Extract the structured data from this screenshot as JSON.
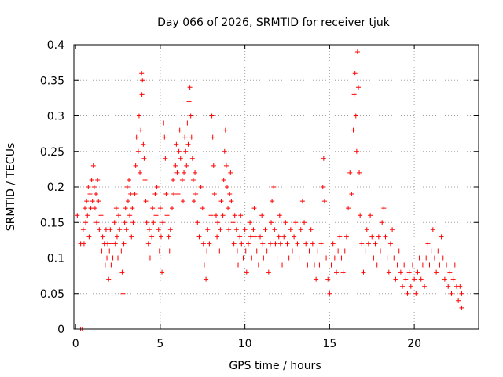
{
  "chart_data": {
    "type": "scatter",
    "title": "Day 066 of 2026, SRMTID for receiver tjuk",
    "xlabel": "GPS time / hours",
    "ylabel": "SRMTID / TECUs",
    "xlim": [
      -0.1,
      23.8
    ],
    "ylim": [
      0,
      0.4
    ],
    "xticks": [
      0,
      5,
      10,
      15,
      20
    ],
    "xtick_labels": [
      "0",
      "5",
      "10",
      "15",
      "20"
    ],
    "yticks": [
      0,
      0.05,
      0.1,
      0.15,
      0.2,
      0.25,
      0.3,
      0.35,
      0.4
    ],
    "ytick_labels": [
      "0",
      "0.05",
      "0.1",
      "0.15",
      "0.2",
      "0.25",
      "0.3",
      "0.35",
      "0.4"
    ],
    "grid": true,
    "marker": "+",
    "color": "#ff0000",
    "series": [
      {
        "name": "SRMTID",
        "points": [
          [
            0.1,
            0.16
          ],
          [
            0.2,
            0.1
          ],
          [
            0.3,
            0.12
          ],
          [
            0.3,
            0.0
          ],
          [
            0.4,
            0.0
          ],
          [
            0.45,
            0.14
          ],
          [
            0.5,
            0.12
          ],
          [
            0.55,
            0.17
          ],
          [
            0.6,
            0.15
          ],
          [
            0.65,
            0.18
          ],
          [
            0.7,
            0.16
          ],
          [
            0.75,
            0.2
          ],
          [
            0.8,
            0.13
          ],
          [
            0.85,
            0.19
          ],
          [
            0.9,
            0.17
          ],
          [
            0.95,
            0.21
          ],
          [
            1.0,
            0.18
          ],
          [
            1.05,
            0.23
          ],
          [
            1.1,
            0.2
          ],
          [
            1.15,
            0.17
          ],
          [
            1.2,
            0.19
          ],
          [
            1.25,
            0.15
          ],
          [
            1.3,
            0.21
          ],
          [
            1.35,
            0.18
          ],
          [
            1.4,
            0.14
          ],
          [
            1.5,
            0.16
          ],
          [
            1.55,
            0.11
          ],
          [
            1.6,
            0.13
          ],
          [
            1.7,
            0.12
          ],
          [
            1.75,
            0.09
          ],
          [
            1.8,
            0.14
          ],
          [
            1.85,
            0.1
          ],
          [
            1.9,
            0.12
          ],
          [
            1.95,
            0.07
          ],
          [
            2.0,
            0.11
          ],
          [
            2.05,
            0.14
          ],
          [
            2.1,
            0.09
          ],
          [
            2.15,
            0.12
          ],
          [
            2.2,
            0.1
          ],
          [
            2.3,
            0.15
          ],
          [
            2.35,
            0.12
          ],
          [
            2.4,
            0.17
          ],
          [
            2.45,
            0.13
          ],
          [
            2.5,
            0.1
          ],
          [
            2.55,
            0.16
          ],
          [
            2.6,
            0.14
          ],
          [
            2.7,
            0.11
          ],
          [
            2.75,
            0.08
          ],
          [
            2.8,
            0.05
          ],
          [
            2.85,
            0.12
          ],
          [
            2.9,
            0.15
          ],
          [
            2.95,
            0.17
          ],
          [
            3.0,
            0.14
          ],
          [
            3.05,
            0.2
          ],
          [
            3.1,
            0.18
          ],
          [
            3.15,
            0.21
          ],
          [
            3.2,
            0.16
          ],
          [
            3.25,
            0.19
          ],
          [
            3.3,
            0.13
          ],
          [
            3.35,
            0.17
          ],
          [
            3.4,
            0.15
          ],
          [
            3.5,
            0.19
          ],
          [
            3.55,
            0.23
          ],
          [
            3.6,
            0.27
          ],
          [
            3.7,
            0.25
          ],
          [
            3.75,
            0.3
          ],
          [
            3.8,
            0.22
          ],
          [
            3.85,
            0.28
          ],
          [
            3.9,
            0.36
          ],
          [
            3.92,
            0.33
          ],
          [
            3.95,
            0.35
          ],
          [
            4.0,
            0.26
          ],
          [
            4.05,
            0.24
          ],
          [
            4.1,
            0.21
          ],
          [
            4.15,
            0.18
          ],
          [
            4.2,
            0.15
          ],
          [
            4.3,
            0.12
          ],
          [
            4.35,
            0.14
          ],
          [
            4.4,
            0.1
          ],
          [
            4.5,
            0.13
          ],
          [
            4.55,
            0.17
          ],
          [
            4.6,
            0.15
          ],
          [
            4.7,
            0.19
          ],
          [
            4.75,
            0.16
          ],
          [
            4.8,
            0.2
          ],
          [
            4.9,
            0.14
          ],
          [
            4.95,
            0.11
          ],
          [
            5.0,
            0.17
          ],
          [
            5.05,
            0.13
          ],
          [
            5.1,
            0.08
          ],
          [
            5.15,
            0.15
          ],
          [
            5.2,
            0.29
          ],
          [
            5.25,
            0.27
          ],
          [
            5.3,
            0.24
          ],
          [
            5.35,
            0.19
          ],
          [
            5.4,
            0.16
          ],
          [
            5.5,
            0.13
          ],
          [
            5.55,
            0.11
          ],
          [
            5.6,
            0.14
          ],
          [
            5.7,
            0.17
          ],
          [
            5.75,
            0.21
          ],
          [
            5.8,
            0.19
          ],
          [
            5.9,
            0.23
          ],
          [
            5.95,
            0.26
          ],
          [
            6.0,
            0.22
          ],
          [
            6.05,
            0.19
          ],
          [
            6.1,
            0.25
          ],
          [
            6.15,
            0.28
          ],
          [
            6.2,
            0.24
          ],
          [
            6.3,
            0.21
          ],
          [
            6.35,
            0.18
          ],
          [
            6.4,
            0.22
          ],
          [
            6.45,
            0.27
          ],
          [
            6.5,
            0.25
          ],
          [
            6.55,
            0.23
          ],
          [
            6.6,
            0.29
          ],
          [
            6.65,
            0.26
          ],
          [
            6.7,
            0.32
          ],
          [
            6.75,
            0.34
          ],
          [
            6.8,
            0.3
          ],
          [
            6.85,
            0.27
          ],
          [
            6.9,
            0.24
          ],
          [
            6.95,
            0.21
          ],
          [
            7.0,
            0.18
          ],
          [
            7.05,
            0.22
          ],
          [
            7.1,
            0.19
          ],
          [
            7.2,
            0.15
          ],
          [
            7.3,
            0.13
          ],
          [
            7.4,
            0.2
          ],
          [
            7.5,
            0.17
          ],
          [
            7.55,
            0.12
          ],
          [
            7.6,
            0.09
          ],
          [
            7.7,
            0.07
          ],
          [
            7.75,
            0.11
          ],
          [
            7.8,
            0.14
          ],
          [
            7.9,
            0.12
          ],
          [
            8.0,
            0.16
          ],
          [
            8.05,
            0.3
          ],
          [
            8.1,
            0.27
          ],
          [
            8.15,
            0.23
          ],
          [
            8.2,
            0.19
          ],
          [
            8.3,
            0.16
          ],
          [
            8.35,
            0.13
          ],
          [
            8.4,
            0.15
          ],
          [
            8.5,
            0.11
          ],
          [
            8.55,
            0.14
          ],
          [
            8.6,
            0.18
          ],
          [
            8.7,
            0.16
          ],
          [
            8.75,
            0.21
          ],
          [
            8.8,
            0.25
          ],
          [
            8.85,
            0.28
          ],
          [
            8.9,
            0.23
          ],
          [
            8.95,
            0.2
          ],
          [
            9.0,
            0.17
          ],
          [
            9.05,
            0.14
          ],
          [
            9.1,
            0.19
          ],
          [
            9.15,
            0.22
          ],
          [
            9.2,
            0.18
          ],
          [
            9.3,
            0.15
          ],
          [
            9.35,
            0.12
          ],
          [
            9.4,
            0.16
          ],
          [
            9.5,
            0.14
          ],
          [
            9.55,
            0.11
          ],
          [
            9.6,
            0.09
          ],
          [
            9.7,
            0.13
          ],
          [
            9.75,
            0.16
          ],
          [
            9.8,
            0.12
          ],
          [
            9.9,
            0.1
          ],
          [
            10.0,
            0.14
          ],
          [
            10.05,
            0.11
          ],
          [
            10.1,
            0.08
          ],
          [
            10.2,
            0.12
          ],
          [
            10.3,
            0.15
          ],
          [
            10.35,
            0.13
          ],
          [
            10.4,
            0.1
          ],
          [
            10.5,
            0.14
          ],
          [
            10.55,
            0.17
          ],
          [
            10.6,
            0.13
          ],
          [
            10.7,
            0.11
          ],
          [
            10.8,
            0.09
          ],
          [
            10.9,
            0.13
          ],
          [
            11.0,
            0.16
          ],
          [
            11.05,
            0.12
          ],
          [
            11.1,
            0.1
          ],
          [
            11.2,
            0.14
          ],
          [
            11.3,
            0.11
          ],
          [
            11.4,
            0.08
          ],
          [
            11.5,
            0.12
          ],
          [
            11.55,
            0.15
          ],
          [
            11.6,
            0.18
          ],
          [
            11.7,
            0.2
          ],
          [
            11.75,
            0.14
          ],
          [
            11.8,
            0.12
          ],
          [
            11.9,
            0.1
          ],
          [
            12.0,
            0.13
          ],
          [
            12.05,
            0.16
          ],
          [
            12.1,
            0.12
          ],
          [
            12.2,
            0.09
          ],
          [
            12.3,
            0.13
          ],
          [
            12.4,
            0.15
          ],
          [
            12.5,
            0.12
          ],
          [
            12.6,
            0.1
          ],
          [
            12.7,
            0.14
          ],
          [
            12.8,
            0.11
          ],
          [
            12.9,
            0.13
          ],
          [
            13.0,
            0.15
          ],
          [
            13.1,
            0.12
          ],
          [
            13.2,
            0.1
          ],
          [
            13.3,
            0.14
          ],
          [
            13.4,
            0.18
          ],
          [
            13.5,
            0.15
          ],
          [
            13.6,
            0.12
          ],
          [
            13.7,
            0.09
          ],
          [
            13.8,
            0.11
          ],
          [
            13.9,
            0.14
          ],
          [
            14.0,
            0.12
          ],
          [
            14.1,
            0.09
          ],
          [
            14.2,
            0.07
          ],
          [
            14.3,
            0.11
          ],
          [
            14.4,
            0.09
          ],
          [
            14.5,
            0.12
          ],
          [
            14.6,
            0.2
          ],
          [
            14.65,
            0.24
          ],
          [
            14.7,
            0.18
          ],
          [
            14.8,
            0.1
          ],
          [
            14.9,
            0.07
          ],
          [
            15.0,
            0.05
          ],
          [
            15.1,
            0.09
          ],
          [
            15.2,
            0.12
          ],
          [
            15.3,
            0.1
          ],
          [
            15.4,
            0.08
          ],
          [
            15.5,
            0.11
          ],
          [
            15.6,
            0.13
          ],
          [
            15.7,
            0.1
          ],
          [
            15.8,
            0.08
          ],
          [
            15.9,
            0.11
          ],
          [
            16.0,
            0.13
          ],
          [
            16.1,
            0.17
          ],
          [
            16.2,
            0.22
          ],
          [
            16.3,
            0.19
          ],
          [
            16.4,
            0.28
          ],
          [
            16.45,
            0.33
          ],
          [
            16.5,
            0.36
          ],
          [
            16.55,
            0.3
          ],
          [
            16.6,
            0.25
          ],
          [
            16.65,
            0.39
          ],
          [
            16.7,
            0.34
          ],
          [
            16.75,
            0.22
          ],
          [
            16.8,
            0.16
          ],
          [
            16.9,
            0.12
          ],
          [
            17.0,
            0.08
          ],
          [
            17.1,
            0.11
          ],
          [
            17.2,
            0.14
          ],
          [
            17.3,
            0.12
          ],
          [
            17.4,
            0.16
          ],
          [
            17.5,
            0.13
          ],
          [
            17.6,
            0.1
          ],
          [
            17.7,
            0.12
          ],
          [
            17.8,
            0.09
          ],
          [
            17.9,
            0.13
          ],
          [
            18.0,
            0.11
          ],
          [
            18.1,
            0.15
          ],
          [
            18.2,
            0.17
          ],
          [
            18.3,
            0.13
          ],
          [
            18.4,
            0.1
          ],
          [
            18.5,
            0.08
          ],
          [
            18.6,
            0.12
          ],
          [
            18.7,
            0.14
          ],
          [
            18.8,
            0.1
          ],
          [
            18.9,
            0.07
          ],
          [
            19.0,
            0.09
          ],
          [
            19.1,
            0.11
          ],
          [
            19.2,
            0.08
          ],
          [
            19.3,
            0.06
          ],
          [
            19.4,
            0.09
          ],
          [
            19.5,
            0.07
          ],
          [
            19.6,
            0.05
          ],
          [
            19.7,
            0.08
          ],
          [
            19.8,
            0.06
          ],
          [
            19.9,
            0.09
          ],
          [
            20.0,
            0.07
          ],
          [
            20.1,
            0.05
          ],
          [
            20.2,
            0.08
          ],
          [
            20.3,
            0.1
          ],
          [
            20.4,
            0.07
          ],
          [
            20.5,
            0.09
          ],
          [
            20.6,
            0.06
          ],
          [
            20.7,
            0.1
          ],
          [
            20.8,
            0.12
          ],
          [
            20.9,
            0.09
          ],
          [
            21.0,
            0.11
          ],
          [
            21.1,
            0.14
          ],
          [
            21.2,
            0.1
          ],
          [
            21.3,
            0.08
          ],
          [
            21.4,
            0.11
          ],
          [
            21.5,
            0.09
          ],
          [
            21.6,
            0.13
          ],
          [
            21.7,
            0.1
          ],
          [
            21.8,
            0.07
          ],
          [
            21.9,
            0.09
          ],
          [
            22.0,
            0.06
          ],
          [
            22.1,
            0.08
          ],
          [
            22.2,
            0.05
          ],
          [
            22.3,
            0.07
          ],
          [
            22.4,
            0.09
          ],
          [
            22.5,
            0.06
          ],
          [
            22.6,
            0.04
          ],
          [
            22.7,
            0.06
          ],
          [
            22.8,
            0.05
          ],
          [
            22.8,
            0.03
          ]
        ]
      }
    ]
  }
}
